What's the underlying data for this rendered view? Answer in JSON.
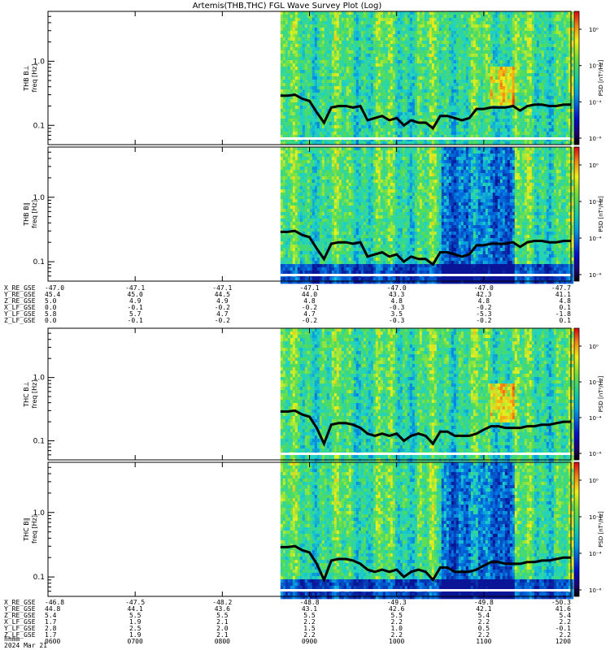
{
  "title": "Artemis(THB,THC) FGL Wave Survey Plot (Log)",
  "colorbar_label": "PSD [nT²/Hz]",
  "colorbar_ticks": [
    "10⁰",
    "10⁻²",
    "10⁻⁴",
    "10⁻⁶"
  ],
  "date": "2024 Mar 21",
  "time_ticks": [
    "0600",
    "0700",
    "0800",
    "0900",
    "1000",
    "1100",
    "1200"
  ],
  "colors": {
    "spec_low": "#0a1aa0",
    "spec_mid": "#1fd4c0",
    "spec_high": "#f0f020",
    "spec_peak": "#e8321e",
    "trace": "#000000"
  },
  "chart_data": [
    {
      "type": "heatmap",
      "panel": "THB B_L",
      "ylabel": "THB B⊥\nfreq [Hz]",
      "yscale": "log",
      "ylim": [
        0.05,
        6
      ],
      "yticks": [
        "1.0",
        "0.1"
      ],
      "xlim": [
        "0600",
        "1200"
      ],
      "data_start": "0840",
      "overlay": {
        "name": "trace",
        "x": [
          "0840",
          "0845",
          "0850",
          "0855",
          "0900",
          "0905",
          "0910",
          "0915",
          "0920",
          "0925",
          "0930",
          "0935",
          "0940",
          "0945",
          "0950",
          "0955",
          "1000",
          "1005",
          "1010",
          "1015",
          "1020",
          "1025",
          "1030",
          "1035",
          "1040",
          "1045",
          "1050",
          "1055",
          "1100",
          "1105",
          "1110",
          "1115",
          "1120",
          "1125",
          "1130",
          "1135",
          "1140",
          "1145",
          "1150",
          "1155",
          "1200"
        ],
        "y": [
          0.29,
          0.29,
          0.3,
          0.26,
          0.24,
          0.16,
          0.11,
          0.19,
          0.2,
          0.2,
          0.19,
          0.2,
          0.12,
          0.13,
          0.14,
          0.12,
          0.13,
          0.1,
          0.12,
          0.11,
          0.11,
          0.09,
          0.14,
          0.14,
          0.13,
          0.12,
          0.13,
          0.18,
          0.18,
          0.19,
          0.19,
          0.19,
          0.2,
          0.17,
          0.2,
          0.21,
          0.21,
          0.2,
          0.2,
          0.21,
          0.21
        ]
      }
    },
    {
      "type": "heatmap",
      "panel": "THB B_par",
      "ylabel": "THB B∥\nfreq [Hz]",
      "yscale": "log",
      "ylim": [
        0.05,
        6
      ],
      "yticks": [
        "1.0",
        "0.1"
      ],
      "xlim": [
        "0600",
        "1200"
      ],
      "data_start": "0840",
      "overlay": {
        "name": "trace",
        "x": [
          "0840",
          "0845",
          "0850",
          "0855",
          "0900",
          "0905",
          "0910",
          "0915",
          "0920",
          "0925",
          "0930",
          "0935",
          "0940",
          "0945",
          "0950",
          "0955",
          "1000",
          "1005",
          "1010",
          "1015",
          "1020",
          "1025",
          "1030",
          "1035",
          "1040",
          "1045",
          "1050",
          "1055",
          "1100",
          "1105",
          "1110",
          "1115",
          "1120",
          "1125",
          "1130",
          "1135",
          "1140",
          "1145",
          "1150",
          "1155",
          "1200"
        ],
        "y": [
          0.29,
          0.29,
          0.3,
          0.26,
          0.24,
          0.16,
          0.11,
          0.19,
          0.2,
          0.2,
          0.19,
          0.2,
          0.12,
          0.13,
          0.14,
          0.12,
          0.13,
          0.1,
          0.12,
          0.11,
          0.11,
          0.09,
          0.14,
          0.14,
          0.13,
          0.12,
          0.13,
          0.18,
          0.18,
          0.19,
          0.19,
          0.19,
          0.2,
          0.17,
          0.2,
          0.21,
          0.21,
          0.2,
          0.2,
          0.21,
          0.21
        ]
      }
    },
    {
      "type": "heatmap",
      "panel": "THC B_L",
      "ylabel": "THC B⊥\nfreq [Hz]",
      "yscale": "log",
      "ylim": [
        0.05,
        6
      ],
      "yticks": [
        "1.0",
        "0.1"
      ],
      "xlim": [
        "0600",
        "1200"
      ],
      "data_start": "0840",
      "overlay": {
        "name": "trace",
        "x": [
          "0840",
          "0845",
          "0850",
          "0855",
          "0900",
          "0905",
          "0910",
          "0915",
          "0920",
          "0925",
          "0930",
          "0935",
          "0940",
          "0945",
          "0950",
          "0955",
          "1000",
          "1005",
          "1010",
          "1015",
          "1020",
          "1025",
          "1030",
          "1035",
          "1040",
          "1045",
          "1050",
          "1055",
          "1100",
          "1105",
          "1110",
          "1115",
          "1120",
          "1125",
          "1130",
          "1135",
          "1140",
          "1145",
          "1150",
          "1155",
          "1200"
        ],
        "y": [
          0.29,
          0.29,
          0.3,
          0.26,
          0.24,
          0.16,
          0.09,
          0.18,
          0.19,
          0.19,
          0.18,
          0.16,
          0.13,
          0.12,
          0.13,
          0.12,
          0.13,
          0.1,
          0.12,
          0.13,
          0.12,
          0.09,
          0.14,
          0.14,
          0.12,
          0.12,
          0.12,
          0.13,
          0.15,
          0.17,
          0.17,
          0.16,
          0.16,
          0.16,
          0.17,
          0.17,
          0.18,
          0.18,
          0.19,
          0.2,
          0.2
        ]
      }
    },
    {
      "type": "heatmap",
      "panel": "THC B_par",
      "ylabel": "THC B∥\nfreq [Hz]",
      "yscale": "log",
      "ylim": [
        0.05,
        6
      ],
      "yticks": [
        "1.0",
        "0.1"
      ],
      "xlim": [
        "0600",
        "1200"
      ],
      "data_start": "0840",
      "overlay": {
        "name": "trace",
        "x": [
          "0840",
          "0845",
          "0850",
          "0855",
          "0900",
          "0905",
          "0910",
          "0915",
          "0920",
          "0925",
          "0930",
          "0935",
          "0940",
          "0945",
          "0950",
          "0955",
          "1000",
          "1005",
          "1010",
          "1015",
          "1020",
          "1025",
          "1030",
          "1035",
          "1040",
          "1045",
          "1050",
          "1055",
          "1100",
          "1105",
          "1110",
          "1115",
          "1120",
          "1125",
          "1130",
          "1135",
          "1140",
          "1145",
          "1150",
          "1155",
          "1200"
        ],
        "y": [
          0.29,
          0.29,
          0.3,
          0.26,
          0.24,
          0.16,
          0.09,
          0.18,
          0.19,
          0.19,
          0.18,
          0.16,
          0.13,
          0.12,
          0.13,
          0.12,
          0.13,
          0.1,
          0.12,
          0.13,
          0.12,
          0.09,
          0.14,
          0.14,
          0.12,
          0.12,
          0.12,
          0.13,
          0.15,
          0.17,
          0.17,
          0.16,
          0.16,
          0.16,
          0.17,
          0.17,
          0.18,
          0.18,
          0.19,
          0.2,
          0.2
        ]
      }
    }
  ],
  "ephemeris_thb": [
    {
      "label": "X_RE_GSE",
      "values": [
        "-47.0",
        "-47.1",
        "-47.1",
        "-47.1",
        "-47.0",
        "-47.0",
        "-47.7"
      ]
    },
    {
      "label": "Y_RE_GSE",
      "values": [
        "45.4",
        "45.0",
        "44.5",
        "44.0",
        "43.3",
        "42.3",
        "41.1"
      ]
    },
    {
      "label": "Z_RE_GSE",
      "values": [
        "5.0",
        "4.9",
        "4.9",
        "4.8",
        "4.8",
        "4.8",
        "4.8"
      ]
    },
    {
      "label": "X_LF_GSE",
      "values": [
        "0.0",
        "-0.1",
        "-0.2",
        "-0.2",
        "-0.3",
        "-0.2",
        "0.1"
      ]
    },
    {
      "label": "Y_LF_GSE",
      "values": [
        "5.8",
        "5.7",
        "4.7",
        "4.7",
        "3.5",
        "-5.3",
        "-1.8"
      ]
    },
    {
      "label": "Z_LF_GSE",
      "values": [
        "0.0",
        "-0.1",
        "-0.2",
        "-0.2",
        "-0.3",
        "-0.2",
        "0.1"
      ]
    }
  ],
  "ephemeris_thc": [
    {
      "label": "X_RE_GSE",
      "values": [
        "-46.8",
        "-47.5",
        "-48.2",
        "-48.8",
        "-49.3",
        "-49.8",
        "-50.3"
      ]
    },
    {
      "label": "Y_RE_GSE",
      "values": [
        "44.8",
        "44.1",
        "43.6",
        "43.1",
        "42.6",
        "42.1",
        "41.6"
      ]
    },
    {
      "label": "Z_RE_GSE",
      "values": [
        "5.4",
        "5.5",
        "5.5",
        "5.5",
        "5.5",
        "5.4",
        "5.4"
      ]
    },
    {
      "label": "X_LF_GSE",
      "values": [
        "1.7",
        "1.9",
        "2.1",
        "2.2",
        "2.2",
        "2.2",
        "2.2"
      ]
    },
    {
      "label": "Y_LF_GSE",
      "values": [
        "2.8",
        "2.5",
        "2.0",
        "1.5",
        "1.0",
        "0.5",
        "-0.1"
      ]
    },
    {
      "label": "Z_LF_GSE",
      "values": [
        "1.7",
        "1.9",
        "2.1",
        "2.2",
        "2.2",
        "2.2",
        "2.2"
      ]
    }
  ],
  "hhmm_label": "hhmm"
}
